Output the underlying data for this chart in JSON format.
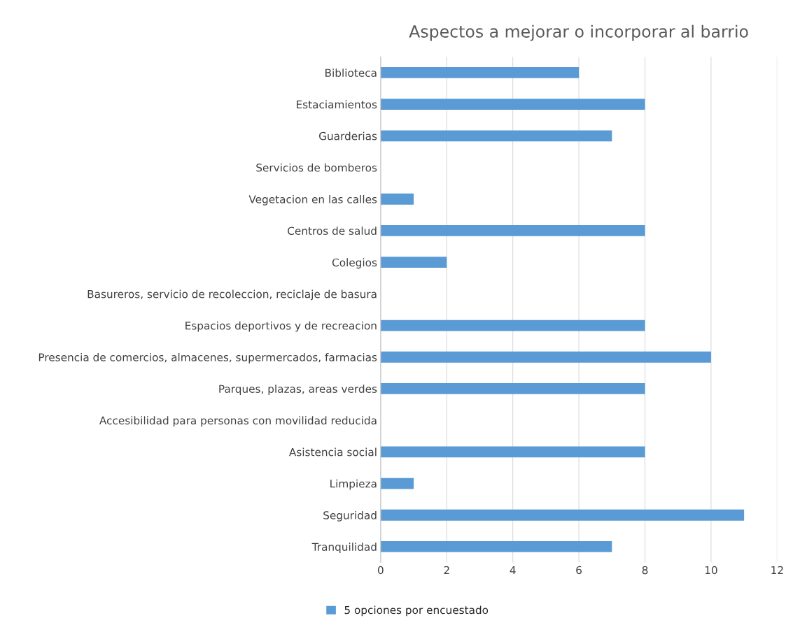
{
  "chart_data": {
    "type": "bar",
    "orientation": "horizontal",
    "title": "Aspectos a mejorar o incorporar al barrio",
    "categories": [
      "Biblioteca",
      "Estaciamientos",
      "Guarderias",
      "Servicios de bomberos",
      "Vegetacion en las calles",
      "Centros de salud",
      "Colegios",
      "Basureros, servicio de recoleccion, reciclaje de basura",
      "Espacios deportivos y de recreacion",
      "Presencia de comercios, almacenes, supermercados, farmacias",
      "Parques, plazas, areas verdes",
      "Accesibilidad para personas con movilidad reducida",
      "Asistencia social",
      "Limpieza",
      "Seguridad",
      "Tranquilidad"
    ],
    "series": [
      {
        "name": "5 opciones por encuestado",
        "color": "#5b9bd5",
        "values": [
          6,
          8,
          7,
          0,
          1,
          8,
          2,
          0,
          8,
          10,
          8,
          0,
          8,
          1,
          11,
          7
        ]
      }
    ],
    "xlim": [
      0,
      12
    ],
    "xticks": [
      0,
      2,
      4,
      6,
      8,
      10,
      12
    ],
    "grid": "x",
    "legend": "bottom left"
  }
}
